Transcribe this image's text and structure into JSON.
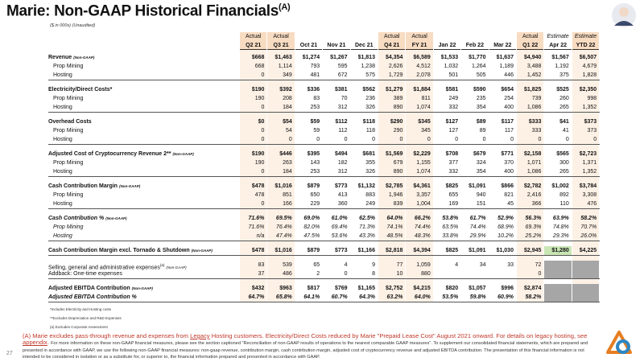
{
  "header": {
    "title": "Marie: Non-GAAP Historical Financials",
    "title_superscript": "(A)",
    "subtitle": "($ in 000s) (Unaudited)"
  },
  "table": {
    "status": [
      "Actual",
      "Actual",
      null,
      null,
      null,
      "Actual",
      "Actual",
      null,
      null,
      null,
      "Actual",
      "Estimate",
      "Estimate"
    ],
    "columns": [
      "Q2 21",
      "Q3 21",
      "Oct 21",
      "Nov 21",
      "Dec 21",
      "Q4 21",
      "FY 21",
      "Jan 22",
      "Feb 22",
      "Mar 22",
      "Q1 22",
      "Apr 22",
      "YTD 22"
    ],
    "rows": [
      {
        "label": "Revenue",
        "tag": "(Non-GAAP)",
        "cells": [
          "$668",
          "$1,463",
          "$1,274",
          "$1,267",
          "$1,813",
          "$4,354",
          "$6,589",
          "$1,533",
          "$1,770",
          "$1,637",
          "$4,940",
          "$1,567",
          "$6,507"
        ]
      },
      {
        "label": "Prop Mining",
        "cells": [
          "668",
          "1,114",
          "793",
          "595",
          "1,238",
          "2,626",
          "4,512",
          "1,032",
          "1,264",
          "1,189",
          "3,488",
          "1,192",
          "4,679"
        ]
      },
      {
        "label": "Hosting",
        "cells": [
          "0",
          "349",
          "481",
          "672",
          "575",
          "1,729",
          "2,078",
          "501",
          "505",
          "446",
          "1,452",
          "375",
          "1,828"
        ]
      },
      {
        "label": "Electricity/Direct Costs*",
        "cells": [
          "$190",
          "$392",
          "$336",
          "$381",
          "$562",
          "$1,279",
          "$1,884",
          "$581",
          "$590",
          "$654",
          "$1,825",
          "$525",
          "$2,350"
        ]
      },
      {
        "label": "Prop Mining",
        "cells": [
          "190",
          "208",
          "83",
          "70",
          "236",
          "389",
          "811",
          "249",
          "235",
          "254",
          "739",
          "260",
          "998"
        ]
      },
      {
        "label": "Hosting",
        "cells": [
          "0",
          "184",
          "253",
          "312",
          "326",
          "890",
          "1,074",
          "332",
          "354",
          "400",
          "1,086",
          "265",
          "1,352"
        ]
      },
      {
        "label": "Overhead Costs",
        "cells": [
          "$0",
          "$54",
          "$59",
          "$112",
          "$118",
          "$290",
          "$345",
          "$127",
          "$89",
          "$117",
          "$333",
          "$41",
          "$373"
        ]
      },
      {
        "label": "Prop Mining",
        "cells": [
          "0",
          "54",
          "59",
          "112",
          "118",
          "290",
          "345",
          "127",
          "89",
          "117",
          "333",
          "41",
          "373"
        ]
      },
      {
        "label": "Hosting",
        "cells": [
          "0",
          "0",
          "0",
          "0",
          "0",
          "0",
          "0",
          "0",
          "0",
          "0",
          "0",
          "0",
          "0"
        ]
      },
      {
        "label": "Adjusted Cost of Cryptocurrency Revenue 2**",
        "tag": "(Non-GAAP)",
        "cells": [
          "$190",
          "$446",
          "$395",
          "$494",
          "$681",
          "$1,569",
          "$2,229",
          "$708",
          "$679",
          "$771",
          "$2,158",
          "$565",
          "$2,723"
        ]
      },
      {
        "label": "Prop Mining",
        "cells": [
          "190",
          "263",
          "143",
          "182",
          "355",
          "679",
          "1,155",
          "377",
          "324",
          "370",
          "1,071",
          "300",
          "1,371"
        ]
      },
      {
        "label": "Hosting",
        "cells": [
          "0",
          "184",
          "253",
          "312",
          "326",
          "890",
          "1,074",
          "332",
          "354",
          "400",
          "1,086",
          "265",
          "1,352"
        ]
      },
      {
        "label": "Cash Contribution Margin",
        "tag": "(Non-GAAP)",
        "cells": [
          "$478",
          "$1,016",
          "$879",
          "$773",
          "$1,132",
          "$2,785",
          "$4,361",
          "$825",
          "$1,091",
          "$866",
          "$2,782",
          "$1,002",
          "$3,784"
        ]
      },
      {
        "label": "Prop Mining",
        "cells": [
          "478",
          "851",
          "650",
          "413",
          "883",
          "1,946",
          "3,357",
          "655",
          "940",
          "821",
          "2,416",
          "892",
          "3,308"
        ]
      },
      {
        "label": "Hosting",
        "cells": [
          "0",
          "166",
          "229",
          "360",
          "249",
          "839",
          "1,004",
          "169",
          "151",
          "45",
          "366",
          "110",
          "476"
        ]
      },
      {
        "label": "Cash Contribution %",
        "tag": "(Non-GAAP)",
        "cells": [
          "71.6%",
          "69.5%",
          "69.0%",
          "61.0%",
          "62.5%",
          "64.0%",
          "66.2%",
          "53.8%",
          "61.7%",
          "52.9%",
          "56.3%",
          "63.9%",
          "58.2%"
        ]
      },
      {
        "label": "Prop Mining",
        "cells": [
          "71.6%",
          "76.4%",
          "82.0%",
          "69.4%",
          "71.3%",
          "74.1%",
          "74.4%",
          "63.5%",
          "74.4%",
          "68.9%",
          "69.3%",
          "74.8%",
          "70.7%"
        ]
      },
      {
        "label": "Hosting",
        "cells": [
          "n/a",
          "47.4%",
          "47.5%",
          "53.6%",
          "43.3%",
          "48.5%",
          "48.3%",
          "33.8%",
          "29.9%",
          "10.2%",
          "25.2%",
          "29.3%",
          "26.0%"
        ]
      },
      {
        "label": "Cash Contribution Margin excl. Tornado & Shutdown",
        "tag": "(Non-GAAP)",
        "cells": [
          "$478",
          "$1,016",
          "$879",
          "$773",
          "$1,166",
          "$2,818",
          "$4,394",
          "$825",
          "$1,091",
          "$1,030",
          "$2,945",
          "$1,280",
          "$4,225"
        ]
      },
      {
        "label": "Selling, general and administrative expenses",
        "label_superscript": "(a)",
        "tag": "(Non-GAAP)",
        "cells": [
          "83",
          "539",
          "65",
          "4",
          "9",
          "77",
          "1,059",
          "4",
          "34",
          "33",
          "72",
          null,
          null
        ]
      },
      {
        "label": "Addback: One-time expenses",
        "cells": [
          "37",
          "486",
          "2",
          "0",
          "8",
          "10",
          "880",
          null,
          null,
          null,
          "0",
          null,
          null
        ]
      },
      {
        "label": "Adjusted EBITDA Contribution",
        "tag": "(Non-GAAP)",
        "cells": [
          "$432",
          "$963",
          "$817",
          "$769",
          "$1,165",
          "$2,752",
          "$4,215",
          "$820",
          "$1,057",
          "$996",
          "$2,874",
          null,
          null
        ]
      },
      {
        "label": "Adjusted EBITDA Contribution %",
        "cells": [
          "64.7%",
          "65.8%",
          "64.1%",
          "60.7%",
          "64.3%",
          "63.2%",
          "64.0%",
          "53.5%",
          "59.8%",
          "60.9%",
          "58.2%",
          null,
          null
        ]
      }
    ]
  },
  "footnotes": [
    "*Includes Electricity and Hosting costs",
    "**Excludes Depreciation and R&D Expenses",
    "(a) Excludes Corporate Assessment"
  ],
  "disclaimer": {
    "lead_before_link": "(A) Marie excludes pass-through revenue and expenses from ",
    "link1": "Legacy",
    "lead_after_link": " Hosting customers. Electricity/Direct Costs reduced by Marie \"Prepaid Lease Cost\" August 2021 onward. For details on legacy hosting, see ",
    "link2": "appendix",
    "lead_end": ".",
    "body": "For more information on these non-GAAP financial measures, please see the section captioned \"Reconciliation of non-GAAP results of operations to the nearest comparable GAAP measures\". To supplement our consolidated financial statements, which are prepared and presented in accordance with GAAP, we use the following non-GAAP financial measures: non-gaap revenue, contribution margin, cash contribution margin, adjusted cost of cryptocurrency revenue and adjusted EBITDA contribution. The presentation of this financial information is not intended to be considered in isolation or as a substitute for, or superior to, the financial information prepared and presented in accordance with GAAP."
  },
  "page_number": "27"
}
